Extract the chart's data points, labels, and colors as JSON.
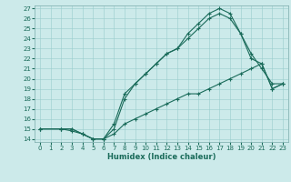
{
  "xlabel": "Humidex (Indice chaleur)",
  "background_color": "#cceaea",
  "grid_color": "#99cccc",
  "line_color": "#1a6b5a",
  "xlim": [
    -0.5,
    23.5
  ],
  "ylim": [
    13.7,
    27.3
  ],
  "xticks": [
    0,
    1,
    2,
    3,
    4,
    5,
    6,
    7,
    8,
    9,
    10,
    11,
    12,
    13,
    14,
    15,
    16,
    17,
    18,
    19,
    20,
    21,
    22,
    23
  ],
  "yticks": [
    14,
    15,
    16,
    17,
    18,
    19,
    20,
    21,
    22,
    23,
    24,
    25,
    26,
    27
  ],
  "curve1_x": [
    0,
    2,
    3,
    4,
    5,
    6,
    7,
    8,
    9,
    10,
    11,
    12,
    13,
    14,
    15,
    16,
    17,
    18,
    19,
    20,
    21,
    22,
    23
  ],
  "curve1_y": [
    15,
    15,
    15,
    14.5,
    14,
    14,
    14.5,
    15.5,
    16,
    16.5,
    17,
    17.5,
    18,
    18.5,
    18.5,
    19,
    19.5,
    20,
    20.5,
    21,
    21.5,
    19,
    19.5
  ],
  "curve2_x": [
    0,
    2,
    3,
    4,
    5,
    6,
    7,
    8,
    9,
    10,
    11,
    12,
    13,
    14,
    15,
    16,
    17,
    18,
    19,
    20,
    21,
    22,
    23
  ],
  "curve2_y": [
    15,
    15,
    14.8,
    14.5,
    14.0,
    14.0,
    15.0,
    18.0,
    19.5,
    20.5,
    21.5,
    22.5,
    23.0,
    24.5,
    25.5,
    26.5,
    27.0,
    26.5,
    24.5,
    22.5,
    21.0,
    19.5,
    19.5
  ],
  "curve3_x": [
    0,
    2,
    3,
    4,
    5,
    6,
    7,
    8,
    9,
    10,
    11,
    12,
    13,
    14,
    15,
    16,
    17,
    18,
    19,
    20,
    21,
    22,
    23
  ],
  "curve3_y": [
    15,
    15,
    15.0,
    14.5,
    14.0,
    14.0,
    15.5,
    18.5,
    19.5,
    20.5,
    21.5,
    22.5,
    23.0,
    24.0,
    25.0,
    26.0,
    26.5,
    26.0,
    24.5,
    22.0,
    21.5,
    19.0,
    19.5
  ]
}
